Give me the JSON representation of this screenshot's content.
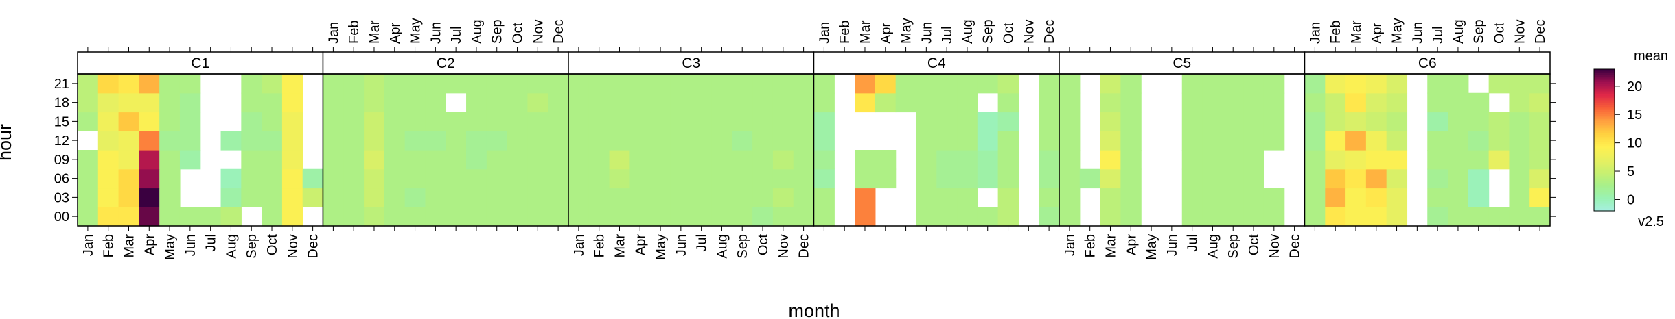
{
  "chart_data": {
    "type": "heatmap",
    "xlabel": "month",
    "ylabel": "hour",
    "months": [
      "Jan",
      "Feb",
      "Mar",
      "Apr",
      "May",
      "Jun",
      "Jul",
      "Aug",
      "Sep",
      "Oct",
      "Nov",
      "Dec"
    ],
    "hours": [
      "00",
      "03",
      "06",
      "09",
      "12",
      "15",
      "18",
      "21"
    ],
    "colorbar": {
      "title": "mean",
      "subtitle": "v2.5",
      "range": [
        -2,
        23
      ],
      "ticks": [
        0,
        5,
        10,
        15,
        20
      ],
      "palette": [
        "#a6f0e0",
        "#9af2b4",
        "#a8f08a",
        "#c8f070",
        "#e8f060",
        "#fff050",
        "#ffd040",
        "#ffa040",
        "#f86038",
        "#e02848",
        "#a01050",
        "#3a0040"
      ]
    },
    "panels": [
      {
        "name": "C1",
        "values": [
          [
            3,
            10,
            10,
            22,
            3,
            3,
            3,
            4,
            null,
            3,
            9,
            null
          ],
          [
            3,
            9,
            11,
            23,
            3,
            null,
            null,
            1,
            3,
            3,
            9,
            5
          ],
          [
            3,
            9,
            11,
            21,
            3,
            null,
            null,
            0,
            3,
            3,
            9,
            1
          ],
          [
            3,
            9,
            8,
            20,
            3,
            1,
            null,
            null,
            3,
            3,
            8,
            null
          ],
          [
            null,
            7,
            8,
            15,
            2,
            2,
            null,
            1,
            2,
            2,
            8,
            null
          ],
          [
            3,
            8,
            12,
            9,
            3,
            2,
            null,
            null,
            2,
            3,
            8,
            null
          ],
          [
            4,
            7,
            8,
            8,
            3,
            2,
            null,
            null,
            3,
            3,
            9,
            null
          ],
          [
            4,
            11,
            10,
            13,
            3,
            3,
            null,
            null,
            3,
            4,
            9,
            null
          ]
        ]
      },
      {
        "name": "C2",
        "values": [
          [
            3,
            3,
            4,
            3,
            3,
            3,
            3,
            3,
            3,
            3,
            3,
            3
          ],
          [
            3,
            3,
            5,
            3,
            2,
            3,
            3,
            3,
            3,
            3,
            3,
            3
          ],
          [
            3,
            3,
            5,
            3,
            3,
            3,
            3,
            3,
            3,
            3,
            3,
            3
          ],
          [
            3,
            3,
            6,
            3,
            3,
            3,
            3,
            2,
            3,
            3,
            3,
            3
          ],
          [
            3,
            3,
            5,
            3,
            2,
            2,
            3,
            2,
            2,
            3,
            3,
            3
          ],
          [
            3,
            3,
            5,
            3,
            3,
            3,
            3,
            3,
            3,
            3,
            3,
            3
          ],
          [
            3,
            3,
            4,
            3,
            3,
            3,
            null,
            3,
            3,
            3,
            4,
            3
          ],
          [
            3,
            3,
            4,
            3,
            3,
            3,
            3,
            3,
            3,
            3,
            3,
            3
          ]
        ]
      },
      {
        "name": "C3",
        "values": [
          [
            3,
            3,
            3,
            3,
            3,
            3,
            3,
            3,
            3,
            2,
            3,
            3
          ],
          [
            3,
            3,
            3,
            3,
            3,
            3,
            3,
            3,
            3,
            3,
            4,
            3
          ],
          [
            3,
            3,
            4,
            3,
            3,
            3,
            3,
            3,
            3,
            3,
            3,
            3
          ],
          [
            3,
            3,
            5,
            3,
            3,
            3,
            3,
            3,
            3,
            3,
            4,
            3
          ],
          [
            3,
            3,
            3,
            3,
            3,
            3,
            3,
            3,
            2,
            3,
            3,
            3
          ],
          [
            3,
            3,
            3,
            3,
            3,
            3,
            3,
            3,
            3,
            3,
            3,
            3
          ],
          [
            3,
            3,
            3,
            3,
            3,
            3,
            3,
            3,
            3,
            3,
            3,
            3
          ],
          [
            3,
            3,
            3,
            3,
            3,
            3,
            3,
            3,
            3,
            3,
            3,
            3
          ]
        ]
      },
      {
        "name": "C4",
        "values": [
          [
            3,
            null,
            15,
            null,
            null,
            3,
            3,
            3,
            3,
            4,
            null,
            2
          ],
          [
            3,
            null,
            15,
            null,
            null,
            3,
            3,
            3,
            null,
            4,
            null,
            3
          ],
          [
            1,
            null,
            3,
            3,
            null,
            3,
            2,
            2,
            1,
            3,
            null,
            2
          ],
          [
            2,
            null,
            3,
            3,
            null,
            3,
            2,
            2,
            1,
            3,
            null,
            2
          ],
          [
            1,
            null,
            null,
            null,
            null,
            3,
            3,
            3,
            0,
            3,
            null,
            3
          ],
          [
            1,
            null,
            null,
            null,
            null,
            3,
            3,
            3,
            0,
            1,
            null,
            3
          ],
          [
            3,
            null,
            10,
            4,
            3,
            3,
            3,
            3,
            null,
            3,
            null,
            3
          ],
          [
            3,
            null,
            14,
            11,
            3,
            3,
            3,
            3,
            3,
            4,
            null,
            3
          ]
        ]
      },
      {
        "name": "C5",
        "values": [
          [
            3,
            null,
            4,
            3,
            null,
            null,
            3,
            3,
            3,
            3,
            3,
            null
          ],
          [
            3,
            null,
            4,
            3,
            null,
            null,
            3,
            3,
            3,
            3,
            3,
            null
          ],
          [
            3,
            2,
            6,
            3,
            null,
            null,
            3,
            3,
            3,
            3,
            null,
            null
          ],
          [
            3,
            null,
            9,
            3,
            null,
            null,
            3,
            3,
            3,
            3,
            null,
            null
          ],
          [
            3,
            null,
            6,
            3,
            null,
            null,
            3,
            3,
            3,
            3,
            3,
            null
          ],
          [
            3,
            null,
            5,
            3,
            null,
            null,
            3,
            3,
            3,
            3,
            3,
            null
          ],
          [
            3,
            null,
            4,
            3,
            null,
            null,
            3,
            3,
            3,
            3,
            3,
            null
          ],
          [
            3,
            null,
            5,
            3,
            null,
            null,
            3,
            3,
            3,
            3,
            3,
            null
          ]
        ]
      },
      {
        "name": "C6",
        "values": [
          [
            3,
            10,
            9,
            9,
            7,
            null,
            2,
            3,
            3,
            3,
            3,
            3
          ],
          [
            3,
            13,
            9,
            10,
            7,
            null,
            3,
            3,
            0,
            null,
            3,
            9
          ],
          [
            3,
            12,
            10,
            13,
            6,
            null,
            2,
            3,
            0,
            null,
            3,
            6
          ],
          [
            3,
            7,
            8,
            9,
            9,
            null,
            3,
            3,
            3,
            7,
            3,
            4
          ],
          [
            2,
            9,
            13,
            8,
            5,
            null,
            3,
            3,
            2,
            4,
            3,
            4
          ],
          [
            2,
            5,
            6,
            5,
            4,
            null,
            1,
            3,
            3,
            4,
            3,
            4
          ],
          [
            3,
            5,
            10,
            6,
            5,
            null,
            3,
            3,
            3,
            null,
            4,
            5
          ],
          [
            2,
            8,
            9,
            8,
            6,
            null,
            3,
            3,
            null,
            4,
            4,
            4
          ]
        ]
      }
    ]
  }
}
